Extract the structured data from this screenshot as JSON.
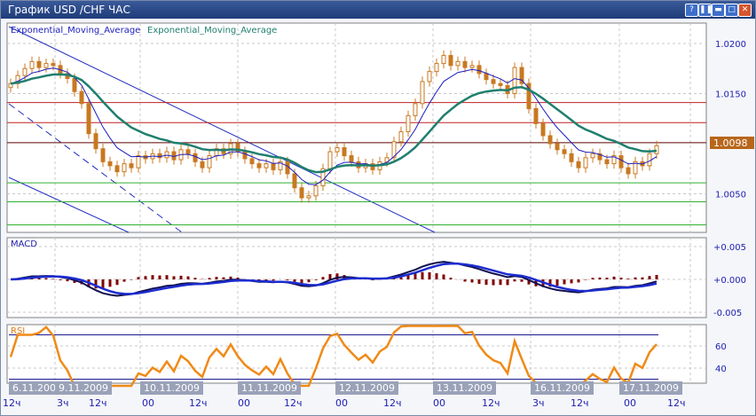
{
  "window": {
    "title": "График USD /CHF  ЧАС",
    "buttons": [
      {
        "name": "help",
        "glyph": "?"
      },
      {
        "name": "pause",
        "glyph": "❚❚"
      },
      {
        "name": "minimize",
        "glyph": "▬"
      },
      {
        "name": "maximize",
        "glyph": "□"
      },
      {
        "name": "close",
        "glyph": "✕"
      }
    ]
  },
  "chart_data": [
    {
      "type": "candlestick",
      "symbol": "USD /CHF",
      "timeframe": "ЧАС",
      "legend": [
        "Exponential_Moving_Average",
        "Exponential_Moving_Average"
      ],
      "series_colors": {
        "ema_fast": "#1c1cc0",
        "ema_slow": "#1f7f6f",
        "candle": "#c87820"
      },
      "ylim": [
        1.0,
        1.022
      ],
      "yticks": [
        "1.0200",
        "1.0150",
        "1.0050"
      ],
      "ytick_values": [
        1.02,
        1.015,
        1.005
      ],
      "current_price": "1.0098",
      "current_price_color": "#b8661a",
      "horizontal_lines": [
        {
          "price": 1.0141,
          "color": "#c02020"
        },
        {
          "price": 1.0121,
          "color": "#c02020"
        },
        {
          "price": 1.0101,
          "color": "#600000"
        },
        {
          "price": 1.0061,
          "color": "#30b030"
        },
        {
          "price": 1.0042,
          "color": "#30b030"
        },
        {
          "price": 1.0019,
          "color": "#30b030"
        }
      ],
      "close": [
        1.016,
        1.0168,
        1.0175,
        1.0182,
        1.0176,
        1.018,
        1.0178,
        1.017,
        1.0165,
        1.0152,
        1.014,
        1.011,
        1.0095,
        1.0082,
        1.0078,
        1.0072,
        1.008,
        1.0076,
        1.0088,
        1.0085,
        1.009,
        1.0086,
        1.0092,
        1.0084,
        1.0094,
        1.009,
        1.0082,
        1.0076,
        1.0088,
        1.0095,
        1.009,
        1.01,
        1.0092,
        1.0085,
        1.008,
        1.0076,
        1.008,
        1.0074,
        1.0082,
        1.007,
        1.0056,
        1.0046,
        1.0048,
        1.0058,
        1.0075,
        1.0092,
        1.0096,
        1.0088,
        1.0082,
        1.0076,
        1.008,
        1.0074,
        1.0082,
        1.0086,
        1.0102,
        1.0112,
        1.0128,
        1.014,
        1.0162,
        1.0172,
        1.018,
        1.0188,
        1.0178,
        1.0182,
        1.0176,
        1.0178,
        1.017,
        1.0164,
        1.016,
        1.0158,
        1.015,
        1.0176,
        1.016,
        1.0135,
        1.012,
        1.0108,
        1.01,
        1.0094,
        1.009,
        1.0082,
        1.0076,
        1.0086,
        1.009,
        1.0084,
        1.008,
        1.0088,
        1.0076,
        1.007,
        1.0082,
        1.0078,
        1.009,
        1.0098
      ]
    },
    {
      "type": "line",
      "label": "MACD",
      "ylim": [
        -0.0065,
        0.0065
      ],
      "yticks": [
        "+0.005",
        "+0.000",
        "-0.005"
      ],
      "ytick_values": [
        0.005,
        0,
        -0.005
      ]
    },
    {
      "type": "line",
      "label": "RSI",
      "ylim": [
        22,
        80
      ],
      "yticks": [
        "60",
        "40"
      ],
      "ytick_values": [
        60,
        40
      ],
      "levels": [
        70,
        30
      ]
    }
  ],
  "x_axis": {
    "dates": [
      "6.11.2009",
      "9.11.2009",
      "10.11.2009",
      "11.11.2009",
      "12.11.2009",
      "13.11.2009",
      "16.11.2009",
      "17.11.2009"
    ],
    "hours": [
      "12ч",
      "3ч",
      "12ч",
      "00",
      "12ч",
      "00",
      "12ч",
      "00",
      "12ч",
      "00",
      "12ч",
      "3ч",
      "12ч",
      "00",
      "12ч"
    ]
  }
}
